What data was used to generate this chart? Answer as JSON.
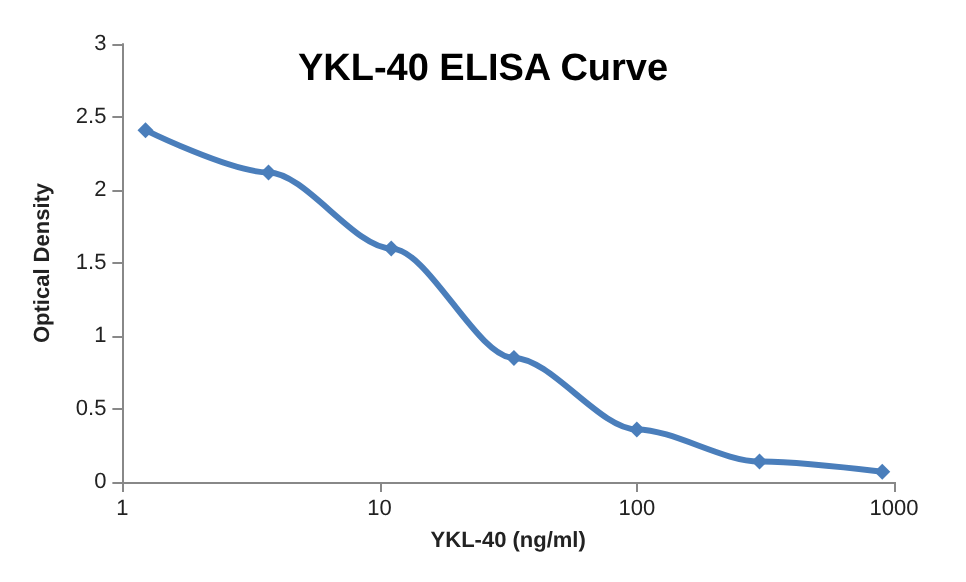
{
  "chart_data": {
    "type": "line",
    "title": "YKL-40 ELISA Curve",
    "xlabel": "YKL-40 (ng/ml)",
    "ylabel": "Optical Density",
    "x": [
      1.23,
      3.7,
      11.1,
      33.3,
      100,
      300,
      900
    ],
    "values": [
      2.41,
      2.12,
      1.6,
      0.85,
      0.36,
      0.14,
      0.07
    ],
    "color": "#4a7ebb",
    "marker": "diamond",
    "log": "x",
    "xlim": [
      1,
      1000
    ],
    "xticks": [
      1,
      10,
      100,
      1000
    ],
    "ylim": [
      0,
      3
    ],
    "yticks": [
      0,
      0.5,
      1,
      1.5,
      2,
      2.5,
      3
    ]
  }
}
